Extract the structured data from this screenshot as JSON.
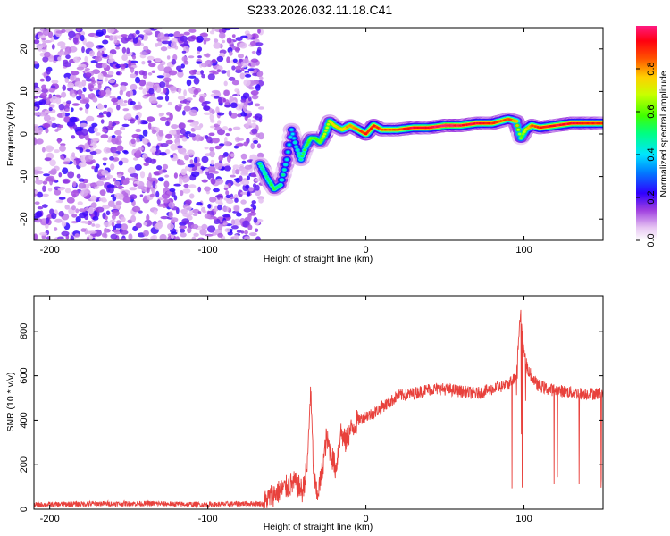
{
  "title": "S233.2026.032.11.18.C41",
  "chart_data": [
    {
      "type": "heatmap",
      "xlabel": "Height of straight line (km)",
      "ylabel": "Frequency (Hz)",
      "xlim": [
        -210,
        150
      ],
      "ylim": [
        -25,
        25
      ],
      "x_ticks": [
        -200,
        -100,
        0,
        100
      ],
      "y_ticks": [
        -20,
        -10,
        0,
        10,
        20
      ],
      "colorbar": {
        "label": "Normalized spectral amplitude",
        "range": [
          0,
          1
        ],
        "ticks": [
          "0.0",
          "0.2",
          "0.4",
          "0.6",
          "0.8"
        ],
        "tick_values": [
          0,
          0.2,
          0.4,
          0.6,
          0.8
        ]
      },
      "noise_region_x": [
        -210,
        -68
      ],
      "ridge": {
        "x": [
          -67,
          -63,
          -58,
          -54,
          -50,
          -47,
          -44,
          -41,
          -38,
          -35,
          -32,
          -29,
          -26,
          -23,
          -20,
          -15,
          -10,
          -5,
          0,
          5,
          10,
          20,
          30,
          40,
          50,
          60,
          70,
          80,
          85,
          90,
          95,
          98,
          101,
          105,
          110,
          120,
          130,
          140,
          150
        ],
        "y": [
          -7,
          -10,
          -13,
          -12,
          -6,
          1,
          -3,
          -6,
          -3,
          -1,
          -1,
          -2,
          0,
          3,
          2,
          1,
          2,
          1,
          0,
          2,
          1,
          1,
          1.5,
          1.5,
          2,
          2,
          2.5,
          2.5,
          3,
          3.5,
          3,
          -1,
          1,
          2,
          1.5,
          2,
          2.5,
          2.5,
          2.5
        ],
        "amplitude": [
          0.5,
          0.5,
          0.55,
          0.5,
          0.45,
          0.4,
          0.45,
          0.5,
          0.55,
          0.6,
          0.6,
          0.6,
          0.7,
          0.7,
          0.75,
          0.75,
          0.8,
          0.85,
          0.9,
          0.9,
          0.85,
          0.85,
          0.95,
          0.95,
          1.0,
          0.95,
          0.95,
          0.9,
          0.85,
          0.85,
          0.8,
          0.6,
          0.7,
          0.85,
          0.9,
          0.95,
          0.95,
          0.9,
          0.9
        ]
      }
    },
    {
      "type": "line",
      "xlabel": "Height of straight line (km)",
      "ylabel": "SNR (10 * v/v)",
      "xlim": [
        -210,
        150
      ],
      "ylim": [
        0,
        960
      ],
      "x_ticks": [
        -200,
        -100,
        0,
        100
      ],
      "y_ticks": [
        0,
        200,
        400,
        600,
        800
      ],
      "color": "#e8413c",
      "x": [
        -210,
        -170,
        -130,
        -100,
        -80,
        -65,
        -60,
        -55,
        -50,
        -45,
        -40,
        -37,
        -35,
        -33,
        -31,
        -28,
        -25,
        -22,
        -19,
        -16,
        -13,
        -10,
        -5,
        0,
        5,
        10,
        15,
        20,
        30,
        40,
        50,
        60,
        70,
        80,
        85,
        90,
        95,
        98,
        100,
        103,
        108,
        115,
        125,
        135,
        150
      ],
      "y": [
        20,
        25,
        25,
        20,
        25,
        25,
        60,
        80,
        100,
        120,
        80,
        200,
        540,
        150,
        60,
        150,
        320,
        250,
        180,
        350,
        300,
        350,
        400,
        420,
        430,
        460,
        480,
        510,
        520,
        540,
        540,
        530,
        520,
        540,
        550,
        560,
        600,
        900,
        700,
        620,
        560,
        540,
        530,
        520,
        520
      ]
    }
  ]
}
